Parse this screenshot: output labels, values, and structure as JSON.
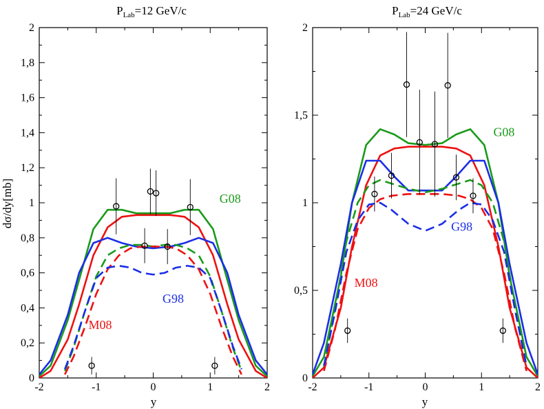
{
  "colors": {
    "G08": "#1a9a1a",
    "M08": "#ee1111",
    "G98": "#1a2ee6",
    "data": "#000000"
  },
  "chart_data": [
    {
      "type": "line",
      "title_prefix": "P",
      "title_sub": "Lab",
      "title_rest": "=12 GeV/c",
      "xlabel": "y",
      "ylabel": "dσ/dy[mb]",
      "xlim": [
        -2,
        2
      ],
      "ylim": [
        0,
        2
      ],
      "xticks": [
        -2,
        -1,
        0,
        1,
        2
      ],
      "xtick_labels": [
        "-2",
        "-1",
        "0",
        "1",
        "2"
      ],
      "yticks": [
        0,
        0.2,
        0.4,
        0.6,
        0.8,
        1.0,
        1.2,
        1.4,
        1.6,
        1.8,
        2.0
      ],
      "ytick_labels": [
        "0",
        "0,2",
        "0,4",
        "0,6",
        "0,8",
        "1",
        "1,2",
        "1,4",
        "1,6",
        "1,8",
        "2"
      ],
      "grid": false,
      "annotations": [
        {
          "text": "G08",
          "color": "G08",
          "x": 1.35,
          "y": 1.0
        },
        {
          "text": "G98",
          "color": "G98",
          "x": 0.35,
          "y": 0.43
        },
        {
          "text": "M08",
          "color": "M08",
          "x": -0.93,
          "y": 0.28
        }
      ],
      "series": [
        {
          "name": "G08",
          "style": "solid",
          "color": "G08",
          "x": [
            -2.0,
            -1.8,
            -1.5,
            -1.3,
            -1.05,
            -0.8,
            -0.55,
            -0.3,
            0,
            0.3,
            0.55,
            0.8,
            1.05,
            1.3,
            1.5,
            1.8,
            2.0
          ],
          "y": [
            0.01,
            0.07,
            0.33,
            0.56,
            0.85,
            0.96,
            0.96,
            0.94,
            0.94,
            0.94,
            0.96,
            0.96,
            0.85,
            0.56,
            0.33,
            0.07,
            0.01
          ]
        },
        {
          "name": "M08",
          "style": "solid",
          "color": "M08",
          "x": [
            -2.0,
            -1.8,
            -1.5,
            -1.3,
            -1.05,
            -0.8,
            -0.55,
            -0.3,
            0,
            0.3,
            0.55,
            0.8,
            1.05,
            1.3,
            1.5,
            1.8,
            2.0
          ],
          "y": [
            0.0,
            0.04,
            0.22,
            0.42,
            0.7,
            0.86,
            0.92,
            0.93,
            0.93,
            0.93,
            0.92,
            0.86,
            0.7,
            0.42,
            0.22,
            0.04,
            0.0
          ]
        },
        {
          "name": "G98",
          "style": "solid",
          "color": "G98",
          "x": [
            -2.0,
            -1.8,
            -1.5,
            -1.3,
            -1.05,
            -0.8,
            -0.55,
            -0.3,
            0,
            0.3,
            0.55,
            0.8,
            1.05,
            1.3,
            1.5,
            1.8,
            2.0
          ],
          "y": [
            0.02,
            0.1,
            0.36,
            0.6,
            0.77,
            0.8,
            0.77,
            0.75,
            0.74,
            0.75,
            0.77,
            0.8,
            0.77,
            0.6,
            0.36,
            0.1,
            0.02
          ]
        },
        {
          "name": "G08",
          "style": "dashed",
          "color": "G08",
          "x": [
            -1.55,
            -1.4,
            -1.2,
            -1.0,
            -0.8,
            -0.6,
            -0.4,
            -0.2,
            0,
            0.2,
            0.4,
            0.6,
            0.8,
            1.0,
            1.2,
            1.4,
            1.55
          ],
          "y": [
            0.04,
            0.17,
            0.38,
            0.58,
            0.7,
            0.74,
            0.76,
            0.76,
            0.75,
            0.76,
            0.76,
            0.74,
            0.7,
            0.58,
            0.38,
            0.17,
            0.04
          ]
        },
        {
          "name": "M08",
          "style": "dashed",
          "color": "M08",
          "x": [
            -1.55,
            -1.4,
            -1.2,
            -1.0,
            -0.8,
            -0.6,
            -0.4,
            -0.2,
            0,
            0.2,
            0.4,
            0.6,
            0.8,
            1.0,
            1.2,
            1.4,
            1.55
          ],
          "y": [
            0.02,
            0.12,
            0.29,
            0.48,
            0.62,
            0.7,
            0.74,
            0.75,
            0.75,
            0.75,
            0.74,
            0.7,
            0.62,
            0.48,
            0.29,
            0.12,
            0.02
          ]
        },
        {
          "name": "G98",
          "style": "dashed",
          "color": "G98",
          "x": [
            -1.55,
            -1.4,
            -1.2,
            -1.0,
            -0.8,
            -0.6,
            -0.4,
            -0.2,
            0,
            0.2,
            0.4,
            0.6,
            0.8,
            1.0,
            1.2,
            1.4,
            1.55
          ],
          "y": [
            0.05,
            0.18,
            0.38,
            0.57,
            0.63,
            0.64,
            0.63,
            0.6,
            0.59,
            0.6,
            0.63,
            0.64,
            0.63,
            0.57,
            0.38,
            0.18,
            0.05
          ]
        }
      ],
      "points": [
        {
          "x": -1.08,
          "y": 0.07,
          "err": 0.05
        },
        {
          "x": -0.65,
          "y": 0.98,
          "err": 0.16
        },
        {
          "x": -0.15,
          "y": 0.755,
          "err": 0.1
        },
        {
          "x": -0.05,
          "y": 1.065,
          "err": 0.13
        },
        {
          "x": 0.05,
          "y": 1.055,
          "err": 0.13
        },
        {
          "x": 0.25,
          "y": 0.75,
          "err": 0.1
        },
        {
          "x": 0.65,
          "y": 0.975,
          "err": 0.16
        },
        {
          "x": 1.08,
          "y": 0.07,
          "err": 0.05
        }
      ]
    },
    {
      "type": "line",
      "title_prefix": "P",
      "title_sub": "Lab",
      "title_rest": "=24 GeV/c",
      "xlabel": "y",
      "ylabel": "",
      "xlim": [
        -2,
        2
      ],
      "ylim": [
        0,
        2
      ],
      "xticks": [
        -2,
        -1,
        0,
        1,
        2
      ],
      "xtick_labels": [
        "-2",
        "-1",
        "0",
        "1",
        "2"
      ],
      "yticks": [
        0,
        0.5,
        1.0,
        1.5,
        2.0
      ],
      "ytick_labels": [
        "0",
        "0,5",
        "1",
        "1,5",
        "2"
      ],
      "grid": false,
      "annotations": [
        {
          "text": "G08",
          "color": "G08",
          "x": 1.4,
          "y": 1.38
        },
        {
          "text": "G98",
          "color": "G98",
          "x": 0.65,
          "y": 0.84
        },
        {
          "text": "M08",
          "color": "M08",
          "x": -1.05,
          "y": 0.52
        }
      ],
      "series": [
        {
          "name": "G08",
          "style": "solid",
          "color": "G08",
          "x": [
            -2.0,
            -1.8,
            -1.5,
            -1.3,
            -1.05,
            -0.8,
            -0.55,
            -0.3,
            0,
            0.3,
            0.55,
            0.8,
            1.05,
            1.3,
            1.5,
            1.8,
            2.0
          ],
          "y": [
            0.01,
            0.12,
            0.58,
            1.0,
            1.33,
            1.42,
            1.39,
            1.34,
            1.33,
            1.34,
            1.39,
            1.42,
            1.33,
            1.0,
            0.58,
            0.12,
            0.01
          ]
        },
        {
          "name": "M08",
          "style": "solid",
          "color": "M08",
          "x": [
            -2.0,
            -1.8,
            -1.5,
            -1.3,
            -1.05,
            -0.8,
            -0.55,
            -0.3,
            0,
            0.3,
            0.55,
            0.8,
            1.05,
            1.3,
            1.5,
            1.8,
            2.0
          ],
          "y": [
            0.0,
            0.06,
            0.4,
            0.75,
            1.1,
            1.27,
            1.31,
            1.32,
            1.32,
            1.32,
            1.31,
            1.27,
            1.1,
            0.75,
            0.4,
            0.06,
            0.0
          ]
        },
        {
          "name": "G98",
          "style": "solid",
          "color": "G98",
          "x": [
            -2.0,
            -1.8,
            -1.5,
            -1.3,
            -1.05,
            -0.8,
            -0.55,
            -0.3,
            0,
            0.3,
            0.55,
            0.8,
            1.05,
            1.3,
            1.5,
            1.8,
            2.0
          ],
          "y": [
            0.02,
            0.2,
            0.65,
            1.0,
            1.24,
            1.24,
            1.15,
            1.07,
            1.07,
            1.07,
            1.15,
            1.24,
            1.24,
            1.0,
            0.65,
            0.2,
            0.02
          ]
        },
        {
          "name": "G08",
          "style": "dashed",
          "color": "G08",
          "x": [
            -1.8,
            -1.6,
            -1.4,
            -1.2,
            -1.0,
            -0.8,
            -0.6,
            -0.3,
            0,
            0.3,
            0.6,
            0.8,
            1.0,
            1.2,
            1.4,
            1.6,
            1.8
          ],
          "y": [
            0.06,
            0.4,
            0.78,
            1.0,
            1.1,
            1.13,
            1.11,
            1.08,
            1.06,
            1.08,
            1.11,
            1.13,
            1.1,
            1.0,
            0.78,
            0.4,
            0.06
          ]
        },
        {
          "name": "M08",
          "style": "dashed",
          "color": "M08",
          "x": [
            -1.8,
            -1.6,
            -1.4,
            -1.2,
            -1.0,
            -0.8,
            -0.6,
            -0.3,
            0,
            0.3,
            0.6,
            0.8,
            1.0,
            1.2,
            1.4,
            1.6,
            1.8
          ],
          "y": [
            0.04,
            0.28,
            0.6,
            0.85,
            0.97,
            1.02,
            1.04,
            1.05,
            1.05,
            1.05,
            1.04,
            1.02,
            0.97,
            0.85,
            0.6,
            0.28,
            0.04
          ]
        },
        {
          "name": "G98",
          "style": "dashed",
          "color": "G98",
          "x": [
            -1.8,
            -1.6,
            -1.4,
            -1.2,
            -1.0,
            -0.8,
            -0.6,
            -0.3,
            0,
            0.3,
            0.6,
            0.8,
            1.0,
            1.2,
            1.4,
            1.6,
            1.8
          ],
          "y": [
            0.07,
            0.38,
            0.72,
            0.9,
            0.99,
            1.0,
            0.96,
            0.88,
            0.84,
            0.88,
            0.96,
            1.0,
            0.99,
            0.9,
            0.72,
            0.38,
            0.07
          ]
        }
      ],
      "points": [
        {
          "x": -1.38,
          "y": 0.27,
          "err": 0.07
        },
        {
          "x": -0.9,
          "y": 1.05,
          "err": 0.1
        },
        {
          "x": -0.6,
          "y": 1.155,
          "err": 0.13
        },
        {
          "x": -0.33,
          "y": 1.675,
          "err": 0.3
        },
        {
          "x": -0.1,
          "y": 1.345,
          "err": 0.3
        },
        {
          "x": 0.17,
          "y": 1.335,
          "err": 0.3
        },
        {
          "x": 0.4,
          "y": 1.67,
          "err": 0.3
        },
        {
          "x": 0.55,
          "y": 1.145,
          "err": 0.13
        },
        {
          "x": 0.85,
          "y": 1.04,
          "err": 0.1
        },
        {
          "x": 1.38,
          "y": 0.27,
          "err": 0.07
        }
      ]
    }
  ]
}
